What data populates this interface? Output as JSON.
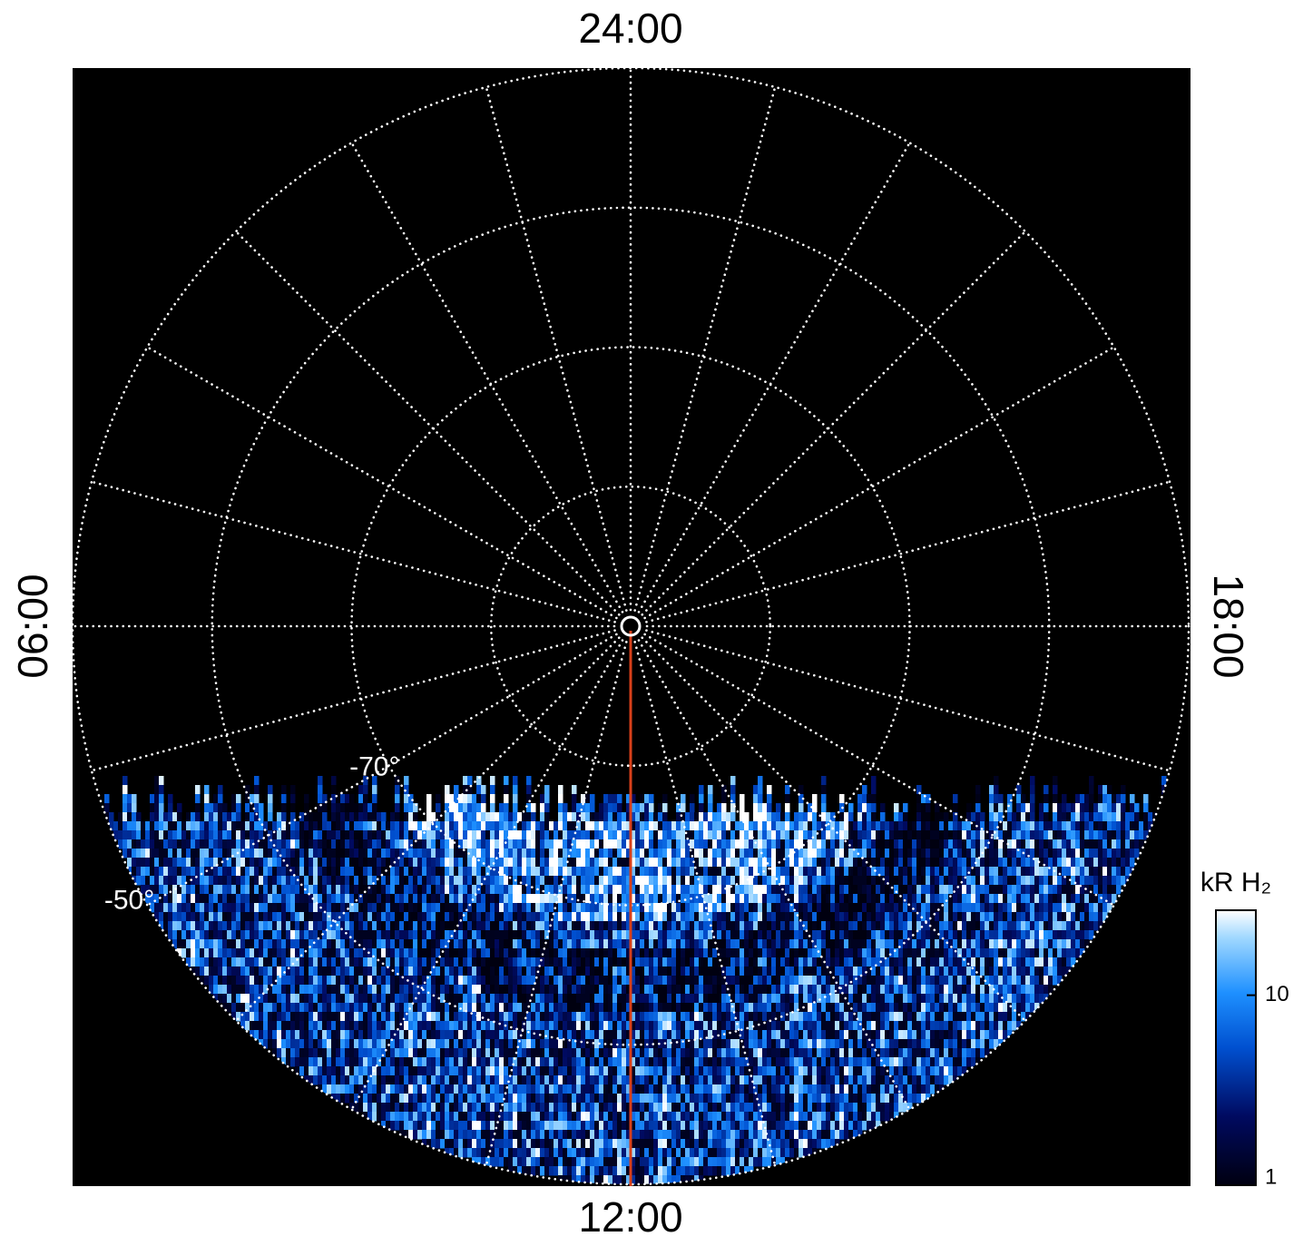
{
  "chart_data": {
    "type": "polar_image",
    "rlim": [
      -90,
      -50
    ],
    "lat_circles": [
      -80,
      -70,
      -60,
      -50
    ],
    "lat_labels": [
      {
        "value": -70,
        "label": "-70°"
      },
      {
        "value": -50,
        "label": "-50°"
      }
    ],
    "meridians": [
      0,
      1,
      2,
      3,
      4,
      5,
      6,
      7,
      8,
      9,
      10,
      11,
      12,
      13,
      14,
      15,
      16,
      17,
      18,
      19,
      20,
      21,
      22,
      23
    ],
    "lt_labels": [
      {
        "value": 0,
        "label": "24:00"
      },
      {
        "value": 6,
        "label": "06:00"
      },
      {
        "value": 12,
        "label": "12:00"
      },
      {
        "value": 18,
        "label": "18:00"
      }
    ],
    "colorbar": {
      "label": "kR H₂",
      "lim": [
        1,
        28
      ],
      "ticks": [
        1,
        10
      ],
      "log": true
    }
  }
}
